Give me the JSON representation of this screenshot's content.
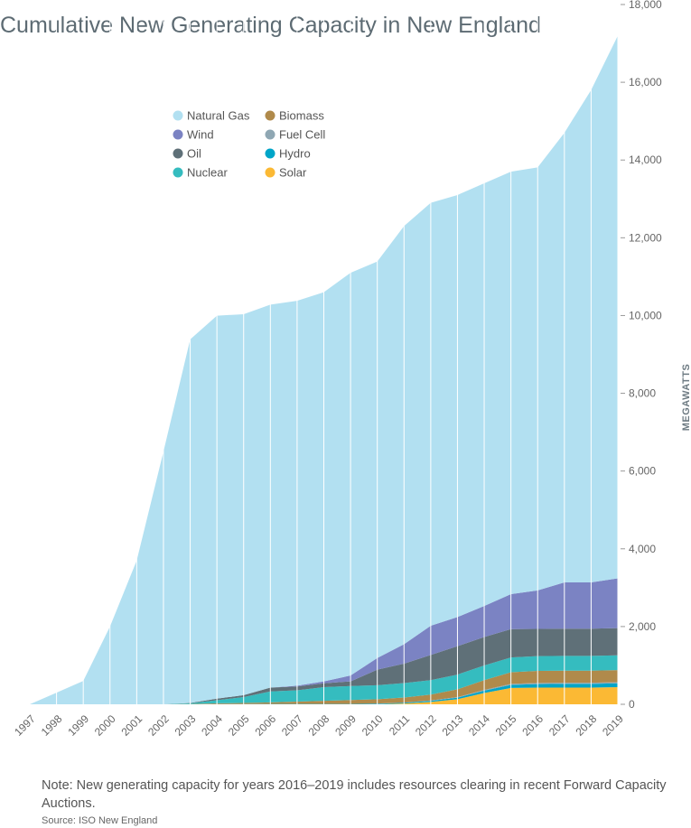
{
  "page": {
    "title": "Cumulative New Generating Capacity in New England",
    "note": "Note:  New generating capacity for years 2016–2019 includes resources clearing in recent Forward Capacity Auctions.",
    "source": "Source: ISO New England"
  },
  "chart_data": {
    "type": "area",
    "stacked": true,
    "title": "Cumulative New Generating Capacity in New England",
    "xlabel": "",
    "ylabel": "MEGAWATTS",
    "ylim": [
      0,
      18000
    ],
    "yticks": [
      "0",
      "2,000",
      "4,000",
      "6,000",
      "8,000",
      "10,000",
      "12,000",
      "14,000",
      "16,000",
      "18,000"
    ],
    "ytick_values": [
      0,
      2000,
      4000,
      6000,
      8000,
      10000,
      12000,
      14000,
      16000,
      18000
    ],
    "x": [
      "1997",
      "1998",
      "1999",
      "2000",
      "2001",
      "2002",
      "2003",
      "2004",
      "2005",
      "2006",
      "2007",
      "2008",
      "2009",
      "2010",
      "2011",
      "2012",
      "2013",
      "2014",
      "2015",
      "2016",
      "2017",
      "2018",
      "2019"
    ],
    "legend_position": "top-left",
    "grid": "vertical",
    "series": [
      {
        "name": "Solar",
        "color": "#fbb934",
        "values": [
          0,
          0,
          0,
          0,
          0,
          0,
          0,
          0,
          0,
          0,
          0,
          0,
          0,
          0,
          20,
          60,
          130,
          290,
          420,
          430,
          430,
          430,
          440
        ]
      },
      {
        "name": "Hydro",
        "color": "#00a5c8",
        "values": [
          0,
          0,
          0,
          0,
          0,
          0,
          0,
          5,
          5,
          10,
          10,
          10,
          10,
          15,
          20,
          30,
          40,
          60,
          80,
          90,
          95,
          95,
          100
        ]
      },
      {
        "name": "Fuel Cell",
        "color": "#8fa7b3",
        "values": [
          0,
          0,
          0,
          0,
          0,
          0,
          0,
          0,
          0,
          0,
          0,
          0,
          0,
          5,
          5,
          10,
          15,
          20,
          25,
          30,
          30,
          30,
          30
        ]
      },
      {
        "name": "Biomass",
        "color": "#b08a4b",
        "values": [
          0,
          0,
          0,
          0,
          0,
          0,
          5,
          20,
          30,
          40,
          60,
          80,
          100,
          110,
          130,
          150,
          200,
          250,
          300,
          310,
          310,
          310,
          310
        ]
      },
      {
        "name": "Nuclear",
        "color": "#35bcbf",
        "values": [
          0,
          0,
          0,
          0,
          0,
          0,
          20,
          80,
          150,
          280,
          290,
          350,
          360,
          360,
          370,
          370,
          380,
          380,
          380,
          380,
          380,
          380,
          380
        ]
      },
      {
        "name": "Oil",
        "color": "#5f7078",
        "values": [
          0,
          0,
          0,
          0,
          0,
          0,
          10,
          40,
          50,
          100,
          100,
          100,
          120,
          400,
          500,
          650,
          730,
          730,
          730,
          700,
          700,
          700,
          700
        ]
      },
      {
        "name": "Wind",
        "color": "#7b83c3",
        "values": [
          0,
          0,
          0,
          0,
          0,
          0,
          0,
          0,
          0,
          0,
          20,
          50,
          150,
          300,
          500,
          750,
          750,
          800,
          900,
          990,
          1190,
          1190,
          1280
        ]
      },
      {
        "name": "Natural Gas",
        "color": "#b2e0f1",
        "values": [
          0,
          300,
          600,
          2000,
          3700,
          6500,
          9350,
          9850,
          9800,
          9850,
          9900,
          10010,
          10360,
          10200,
          10755,
          10880,
          10855,
          10870,
          10865,
          10880,
          11565,
          12665,
          13960
        ]
      }
    ],
    "legend_order": [
      "Natural Gas",
      "Wind",
      "Oil",
      "Nuclear",
      "Biomass",
      "Fuel Cell",
      "Hydro",
      "Solar"
    ]
  }
}
